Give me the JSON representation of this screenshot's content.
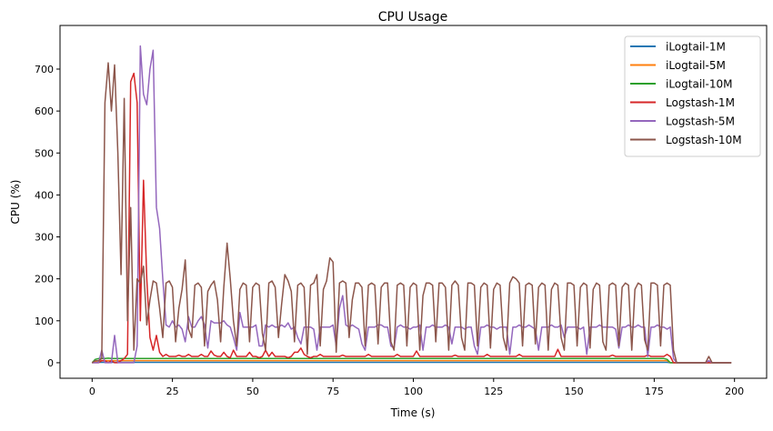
{
  "chart_data": {
    "type": "line",
    "title": "CPU Usage",
    "xlabel": "Time (s)",
    "ylabel": "CPU (%)",
    "xlim": [
      -10,
      210
    ],
    "ylim": [
      -37,
      804
    ],
    "xticks": [
      0,
      25,
      50,
      75,
      100,
      125,
      150,
      175,
      200
    ],
    "yticks": [
      0,
      100,
      200,
      300,
      400,
      500,
      600,
      700
    ],
    "grid": false,
    "legend_position": "top-right",
    "x_start": 0,
    "x_step": 1,
    "series": [
      {
        "name": "iLogtail-1M",
        "color": "#1f77b4",
        "values": [
          0,
          1,
          1,
          1,
          1,
          1,
          1,
          1,
          1,
          1,
          1,
          1,
          1,
          1,
          1,
          1,
          1,
          1,
          1,
          1,
          1,
          1,
          1,
          1,
          1,
          1,
          1,
          1,
          1,
          1,
          1,
          1,
          1,
          1,
          1,
          1,
          1,
          1,
          1,
          1,
          1,
          1,
          1,
          1,
          1,
          1,
          1,
          1,
          1,
          1,
          1,
          1,
          1,
          1,
          1,
          1,
          1,
          1,
          1,
          1,
          1,
          1,
          1,
          1,
          1,
          1,
          1,
          1,
          1,
          1,
          1,
          1,
          1,
          1,
          1,
          1,
          1,
          1,
          1,
          1,
          1,
          1,
          1,
          1,
          1,
          1,
          1,
          1,
          1,
          1,
          1,
          1,
          1,
          1,
          1,
          1,
          1,
          1,
          1,
          1,
          1,
          1,
          1,
          1,
          1,
          1,
          1,
          1,
          1,
          1,
          1,
          1,
          1,
          1,
          1,
          1,
          1,
          1,
          1,
          1,
          1,
          1,
          1,
          1,
          1,
          1,
          1,
          1,
          1,
          1,
          1,
          1,
          1,
          1,
          1,
          1,
          1,
          1,
          1,
          1,
          1,
          1,
          1,
          1,
          1,
          1,
          1,
          1,
          1,
          1,
          1,
          1,
          1,
          1,
          1,
          1,
          1,
          1,
          1,
          1,
          1,
          1,
          1,
          1,
          1,
          1,
          1,
          1,
          1,
          1,
          1,
          1,
          1,
          1,
          1,
          1,
          1,
          1,
          1,
          1,
          0,
          0,
          0,
          0,
          0,
          0,
          0,
          0,
          0,
          0,
          0,
          0,
          0,
          0,
          0,
          0,
          0,
          0,
          0,
          0
        ]
      },
      {
        "name": "iLogtail-5M",
        "color": "#ff7f0e",
        "values": [
          0,
          3,
          5,
          5,
          5,
          5,
          5,
          5,
          5,
          5,
          5,
          5,
          5,
          5,
          5,
          5,
          5,
          5,
          5,
          5,
          5,
          5,
          5,
          5,
          5,
          5,
          5,
          5,
          5,
          5,
          5,
          5,
          5,
          5,
          5,
          5,
          5,
          5,
          5,
          5,
          5,
          5,
          5,
          5,
          5,
          5,
          5,
          5,
          5,
          5,
          5,
          5,
          5,
          5,
          5,
          5,
          5,
          5,
          5,
          5,
          5,
          5,
          5,
          5,
          5,
          5,
          5,
          5,
          5,
          5,
          5,
          5,
          5,
          5,
          5,
          5,
          5,
          5,
          5,
          5,
          5,
          5,
          5,
          5,
          5,
          5,
          5,
          5,
          5,
          5,
          5,
          5,
          5,
          5,
          5,
          5,
          5,
          5,
          5,
          5,
          5,
          5,
          5,
          5,
          5,
          5,
          5,
          5,
          5,
          5,
          5,
          5,
          5,
          5,
          5,
          5,
          5,
          5,
          5,
          5,
          5,
          5,
          5,
          5,
          5,
          5,
          5,
          5,
          5,
          5,
          5,
          5,
          5,
          5,
          5,
          5,
          5,
          5,
          5,
          5,
          5,
          5,
          5,
          5,
          5,
          5,
          5,
          5,
          5,
          5,
          5,
          5,
          5,
          5,
          5,
          5,
          5,
          5,
          5,
          5,
          5,
          5,
          5,
          5,
          5,
          5,
          5,
          5,
          5,
          5,
          5,
          5,
          5,
          5,
          5,
          5,
          5,
          5,
          5,
          5,
          0,
          0,
          0,
          0,
          0,
          0,
          0,
          0,
          0,
          0,
          0,
          0,
          0,
          0,
          0,
          0,
          0,
          0,
          0,
          0
        ]
      },
      {
        "name": "iLogtail-10M",
        "color": "#2ca02c",
        "values": [
          0,
          8,
          10,
          10,
          10,
          11,
          10,
          10,
          10,
          10,
          10,
          10,
          10,
          10,
          10,
          10,
          10,
          10,
          10,
          10,
          10,
          10,
          10,
          10,
          10,
          10,
          10,
          10,
          10,
          10,
          10,
          10,
          10,
          10,
          10,
          10,
          10,
          10,
          10,
          10,
          10,
          10,
          10,
          10,
          10,
          10,
          10,
          10,
          10,
          10,
          10,
          10,
          10,
          10,
          10,
          10,
          10,
          10,
          10,
          10,
          10,
          10,
          10,
          10,
          10,
          10,
          10,
          10,
          10,
          10,
          10,
          10,
          10,
          10,
          10,
          10,
          10,
          10,
          10,
          10,
          10,
          10,
          10,
          10,
          10,
          10,
          10,
          10,
          10,
          10,
          10,
          10,
          10,
          10,
          10,
          10,
          10,
          10,
          10,
          10,
          10,
          10,
          10,
          10,
          10,
          10,
          10,
          10,
          10,
          10,
          10,
          10,
          10,
          10,
          10,
          10,
          10,
          10,
          10,
          10,
          10,
          10,
          10,
          10,
          10,
          10,
          10,
          10,
          10,
          10,
          10,
          10,
          10,
          10,
          10,
          10,
          10,
          10,
          10,
          10,
          10,
          10,
          10,
          10,
          10,
          10,
          10,
          10,
          10,
          10,
          10,
          10,
          10,
          10,
          10,
          10,
          10,
          10,
          10,
          10,
          10,
          10,
          10,
          10,
          10,
          10,
          10,
          10,
          10,
          10,
          10,
          10,
          10,
          10,
          10,
          10,
          10,
          10,
          10,
          8,
          0,
          0,
          0,
          0,
          0,
          0,
          0,
          0,
          0,
          0,
          0,
          0,
          0,
          0,
          0,
          0,
          0,
          0,
          0,
          0
        ]
      },
      {
        "name": "Logstash-1M",
        "color": "#d62728",
        "values": [
          0,
          0,
          0,
          5,
          5,
          0,
          5,
          0,
          0,
          5,
          10,
          20,
          670,
          690,
          620,
          100,
          435,
          200,
          60,
          30,
          65,
          25,
          15,
          20,
          15,
          15,
          15,
          18,
          15,
          15,
          20,
          15,
          15,
          15,
          20,
          15,
          15,
          28,
          18,
          15,
          15,
          25,
          15,
          12,
          30,
          15,
          15,
          15,
          15,
          25,
          15,
          15,
          12,
          15,
          30,
          15,
          25,
          15,
          15,
          15,
          15,
          12,
          15,
          25,
          25,
          35,
          20,
          15,
          12,
          15,
          15,
          20,
          15,
          15,
          15,
          15,
          15,
          15,
          18,
          15,
          15,
          15,
          15,
          15,
          15,
          15,
          20,
          15,
          15,
          15,
          15,
          15,
          15,
          15,
          15,
          20,
          15,
          15,
          15,
          15,
          15,
          28,
          15,
          15,
          15,
          15,
          15,
          15,
          15,
          15,
          15,
          15,
          15,
          18,
          15,
          15,
          15,
          15,
          15,
          15,
          15,
          15,
          15,
          20,
          15,
          15,
          15,
          15,
          15,
          15,
          15,
          15,
          15,
          20,
          15,
          15,
          15,
          15,
          15,
          15,
          15,
          15,
          15,
          15,
          15,
          32,
          15,
          15,
          15,
          15,
          15,
          15,
          15,
          15,
          15,
          15,
          15,
          15,
          15,
          15,
          15,
          15,
          18,
          15,
          15,
          15,
          15,
          15,
          15,
          15,
          15,
          15,
          15,
          18,
          15,
          15,
          15,
          15,
          15,
          20,
          15,
          0,
          0,
          0,
          0,
          0,
          0,
          0,
          0,
          0,
          0,
          0,
          0,
          0,
          0,
          0,
          0,
          0,
          0,
          0
        ]
      },
      {
        "name": "Logstash-5M",
        "color": "#9467bd",
        "values": [
          0,
          0,
          0,
          30,
          0,
          0,
          0,
          65,
          0,
          0,
          0,
          0,
          0,
          0,
          40,
          755,
          640,
          615,
          700,
          745,
          370,
          320,
          200,
          90,
          85,
          100,
          85,
          90,
          80,
          50,
          110,
          85,
          85,
          100,
          110,
          90,
          35,
          100,
          95,
          95,
          95,
          100,
          90,
          85,
          60,
          30,
          120,
          85,
          85,
          85,
          85,
          90,
          40,
          40,
          90,
          85,
          90,
          85,
          85,
          90,
          85,
          95,
          80,
          85,
          60,
          45,
          85,
          85,
          85,
          80,
          30,
          85,
          85,
          85,
          85,
          90,
          40,
          130,
          160,
          90,
          85,
          90,
          85,
          80,
          45,
          30,
          85,
          85,
          85,
          90,
          90,
          85,
          85,
          40,
          35,
          85,
          90,
          85,
          85,
          80,
          85,
          85,
          90,
          30,
          85,
          85,
          90,
          85,
          85,
          85,
          90,
          85,
          45,
          85,
          85,
          85,
          80,
          85,
          85,
          40,
          20,
          85,
          85,
          90,
          85,
          85,
          80,
          85,
          85,
          85,
          20,
          85,
          85,
          90,
          85,
          85,
          90,
          85,
          80,
          30,
          85,
          85,
          85,
          90,
          85,
          85,
          90,
          60,
          85,
          85,
          85,
          85,
          80,
          85,
          20,
          85,
          85,
          85,
          90,
          85,
          85,
          85,
          85,
          80,
          35,
          85,
          85,
          90,
          85,
          85,
          90,
          85,
          85,
          15,
          85,
          85,
          90,
          85,
          85,
          80,
          85,
          10,
          0,
          0,
          0,
          0,
          0,
          0,
          0,
          0,
          0,
          0,
          5,
          0,
          0,
          0,
          0,
          0,
          0,
          0
        ]
      },
      {
        "name": "Logstash-10M",
        "color": "#8c564b",
        "values": [
          0,
          5,
          5,
          10,
          620,
          715,
          600,
          710,
          500,
          210,
          630,
          100,
          370,
          30,
          200,
          190,
          230,
          90,
          150,
          195,
          190,
          130,
          60,
          190,
          195,
          180,
          50,
          130,
          175,
          245,
          80,
          60,
          185,
          190,
          180,
          40,
          170,
          185,
          195,
          150,
          50,
          180,
          285,
          200,
          100,
          40,
          175,
          190,
          185,
          50,
          180,
          190,
          185,
          70,
          30,
          190,
          195,
          180,
          60,
          140,
          210,
          195,
          170,
          50,
          185,
          190,
          180,
          20,
          185,
          190,
          210,
          40,
          175,
          195,
          250,
          240,
          25,
          190,
          195,
          190,
          60,
          150,
          190,
          190,
          180,
          40,
          185,
          190,
          185,
          45,
          180,
          190,
          190,
          50,
          30,
          185,
          190,
          185,
          40,
          180,
          190,
          185,
          30,
          160,
          190,
          190,
          185,
          50,
          190,
          190,
          180,
          30,
          185,
          195,
          185,
          60,
          30,
          190,
          190,
          185,
          40,
          180,
          190,
          185,
          35,
          175,
          190,
          185,
          60,
          30,
          190,
          205,
          200,
          190,
          40,
          185,
          190,
          185,
          45,
          180,
          190,
          185,
          30,
          175,
          190,
          185,
          60,
          30,
          190,
          190,
          185,
          40,
          180,
          190,
          185,
          35,
          175,
          190,
          185,
          50,
          30,
          185,
          190,
          185,
          40,
          180,
          190,
          185,
          30,
          175,
          190,
          185,
          55,
          30,
          190,
          190,
          185,
          40,
          185,
          190,
          185,
          30,
          0,
          0,
          0,
          0,
          0,
          0,
          0,
          0,
          0,
          0,
          15,
          0,
          0,
          0,
          0,
          0,
          0,
          0
        ]
      }
    ]
  }
}
